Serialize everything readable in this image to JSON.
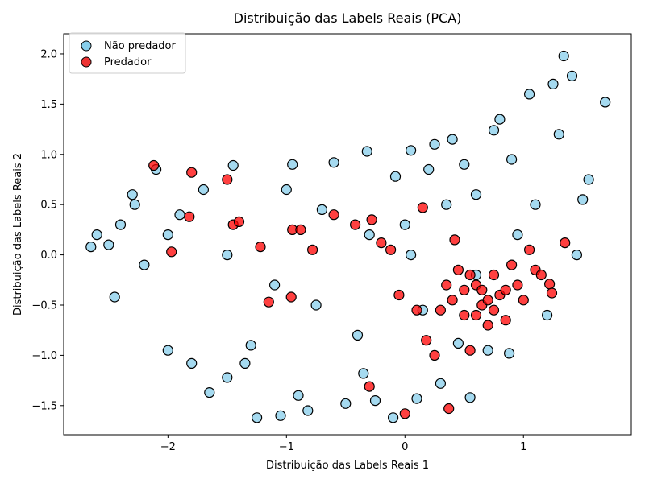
{
  "chart_data": {
    "type": "scatter",
    "title": "Distribuição das Labels Reais (PCA)",
    "xlabel": "Distribuição das Labels Reais  1",
    "ylabel": "Distribuição das Labels Reais  2",
    "xlim": [
      -2.88,
      1.91
    ],
    "ylim": [
      -1.79,
      2.2
    ],
    "xticks": [
      -2,
      -1,
      0,
      1
    ],
    "xtick_labels": [
      "−2",
      "−1",
      "0",
      "1"
    ],
    "yticks": [
      -1.5,
      -1.0,
      -0.5,
      0.0,
      0.5,
      1.0,
      1.5,
      2.0
    ],
    "ytick_labels": [
      "−1.5",
      "−1.0",
      "−0.5",
      "0.0",
      "0.5",
      "1.0",
      "1.5",
      "2.0"
    ],
    "grid": false,
    "legend_position": "upper-left",
    "series": [
      {
        "name": "Não predador",
        "color": "#87ceeb",
        "edge": "#000000",
        "points": [
          [
            -2.65,
            0.08
          ],
          [
            -2.5,
            0.1
          ],
          [
            -2.4,
            0.3
          ],
          [
            -2.3,
            0.6
          ],
          [
            -2.2,
            -0.1
          ],
          [
            -2.1,
            0.85
          ],
          [
            -2.0,
            -0.95
          ],
          [
            -1.9,
            0.4
          ],
          [
            -1.8,
            -1.08
          ],
          [
            -1.65,
            -1.37
          ],
          [
            -1.5,
            -1.22
          ],
          [
            -1.45,
            0.89
          ],
          [
            -1.3,
            -0.9
          ],
          [
            -1.25,
            -1.62
          ],
          [
            -1.05,
            -1.6
          ],
          [
            -1.0,
            0.65
          ],
          [
            -0.95,
            0.9
          ],
          [
            -0.9,
            -1.4
          ],
          [
            -0.82,
            -1.55
          ],
          [
            -0.75,
            -0.5
          ],
          [
            -0.6,
            0.92
          ],
          [
            -0.5,
            -1.48
          ],
          [
            -0.32,
            1.03
          ],
          [
            -0.25,
            -1.45
          ],
          [
            -0.1,
            -1.62
          ],
          [
            -0.08,
            0.78
          ],
          [
            0.0,
            0.3
          ],
          [
            0.05,
            0.0
          ],
          [
            0.05,
            1.04
          ],
          [
            0.1,
            -1.43
          ],
          [
            0.15,
            -0.55
          ],
          [
            0.25,
            1.1
          ],
          [
            0.3,
            -1.28
          ],
          [
            0.35,
            0.5
          ],
          [
            0.4,
            1.15
          ],
          [
            0.55,
            -1.42
          ],
          [
            0.6,
            0.6
          ],
          [
            0.75,
            1.24
          ],
          [
            0.8,
            1.35
          ],
          [
            0.88,
            -0.98
          ],
          [
            0.95,
            0.2
          ],
          [
            1.05,
            1.6
          ],
          [
            1.1,
            0.5
          ],
          [
            1.2,
            -0.6
          ],
          [
            1.25,
            1.7
          ],
          [
            1.34,
            1.98
          ],
          [
            1.41,
            1.78
          ],
          [
            1.55,
            0.75
          ],
          [
            1.69,
            1.52
          ],
          [
            1.45,
            0.0
          ],
          [
            -2.45,
            -0.42
          ],
          [
            -1.35,
            -1.08
          ],
          [
            -0.35,
            -1.18
          ],
          [
            0.45,
            -0.88
          ],
          [
            0.7,
            -0.95
          ],
          [
            -2.6,
            0.2
          ],
          [
            -2.28,
            0.5
          ],
          [
            -1.7,
            0.65
          ],
          [
            -0.7,
            0.45
          ],
          [
            0.2,
            0.85
          ],
          [
            0.5,
            0.9
          ],
          [
            0.9,
            0.95
          ],
          [
            1.3,
            1.2
          ],
          [
            1.5,
            0.55
          ],
          [
            -1.1,
            -0.3
          ],
          [
            -0.4,
            -0.8
          ],
          [
            0.6,
            -0.2
          ],
          [
            -2.0,
            0.2
          ],
          [
            -1.5,
            0.0
          ],
          [
            -0.3,
            0.2
          ]
        ]
      },
      {
        "name": "Predador",
        "color": "#ff0000",
        "edge": "#000000",
        "points": [
          [
            -2.12,
            0.89
          ],
          [
            -1.8,
            0.82
          ],
          [
            -1.5,
            0.75
          ],
          [
            -1.82,
            0.38
          ],
          [
            -1.97,
            0.03
          ],
          [
            -1.45,
            0.3
          ],
          [
            -1.4,
            0.33
          ],
          [
            -1.22,
            0.08
          ],
          [
            -1.15,
            -0.47
          ],
          [
            -0.96,
            -0.42
          ],
          [
            -0.95,
            0.25
          ],
          [
            -0.88,
            0.25
          ],
          [
            -0.78,
            0.05
          ],
          [
            -0.6,
            0.4
          ],
          [
            -0.42,
            0.3
          ],
          [
            -0.28,
            0.35
          ],
          [
            -0.3,
            -1.31
          ],
          [
            -0.2,
            0.12
          ],
          [
            -0.12,
            0.05
          ],
          [
            -0.05,
            -0.4
          ],
          [
            0.0,
            -1.58
          ],
          [
            0.15,
            0.47
          ],
          [
            0.1,
            -0.55
          ],
          [
            0.18,
            -0.85
          ],
          [
            0.25,
            -1.0
          ],
          [
            0.35,
            -0.3
          ],
          [
            0.37,
            -1.53
          ],
          [
            0.42,
            0.15
          ],
          [
            0.5,
            -0.6
          ],
          [
            0.55,
            -0.95
          ],
          [
            0.6,
            -0.3
          ],
          [
            0.65,
            -0.5
          ],
          [
            0.7,
            -0.7
          ],
          [
            0.75,
            -0.2
          ],
          [
            0.8,
            -0.4
          ],
          [
            0.85,
            -0.65
          ],
          [
            0.9,
            -0.1
          ],
          [
            0.95,
            -0.3
          ],
          [
            1.0,
            -0.45
          ],
          [
            1.05,
            0.05
          ],
          [
            1.1,
            -0.15
          ],
          [
            1.15,
            -0.2
          ],
          [
            1.22,
            -0.29
          ],
          [
            1.24,
            -0.38
          ],
          [
            1.35,
            0.12
          ],
          [
            0.45,
            -0.15
          ],
          [
            0.55,
            -0.2
          ],
          [
            0.65,
            -0.35
          ],
          [
            0.7,
            -0.45
          ],
          [
            0.75,
            -0.55
          ],
          [
            0.5,
            -0.35
          ],
          [
            0.4,
            -0.45
          ],
          [
            0.3,
            -0.55
          ],
          [
            0.6,
            -0.6
          ],
          [
            0.85,
            -0.35
          ]
        ]
      }
    ]
  }
}
